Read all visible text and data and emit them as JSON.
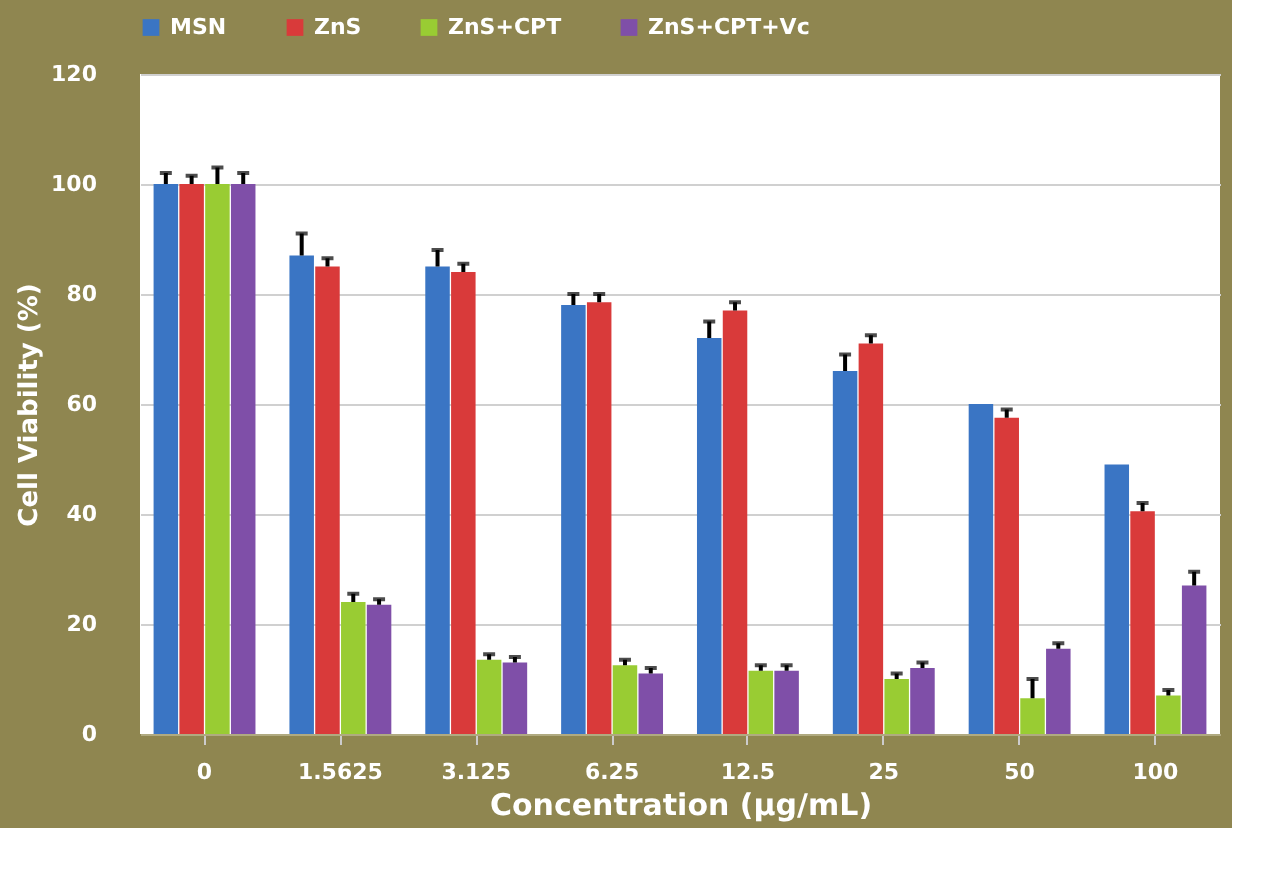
{
  "chart_data": {
    "type": "bar",
    "xlabel": "Concentration (μg/mL)",
    "ylabel": "Cell Viability (%)",
    "categories": [
      "0",
      "1.5625",
      "3.125",
      "6.25",
      "12.5",
      "25",
      "50",
      "100"
    ],
    "series": [
      {
        "name": "MSN",
        "color": "#3a75c4",
        "values": [
          100,
          87,
          85,
          78,
          72,
          66,
          60,
          49
        ],
        "errors": [
          [
            100,
            102
          ],
          [
            87,
            91
          ],
          [
            85,
            88
          ],
          [
            78,
            80
          ],
          [
            72,
            75
          ],
          [
            66,
            69
          ],
          null,
          null
        ]
      },
      {
        "name": "ZnS",
        "color": "#d93a3a",
        "values": [
          100,
          85,
          84,
          78.5,
          77,
          71,
          57.5,
          40.5
        ],
        "errors": [
          [
            100,
            101.5
          ],
          [
            85,
            86.5
          ],
          [
            84,
            85.5
          ],
          [
            78.5,
            80
          ],
          [
            77,
            78.5
          ],
          [
            71,
            72.5
          ],
          [
            57.5,
            59
          ],
          [
            40.5,
            42
          ]
        ]
      },
      {
        "name": "ZnS+CPT",
        "color": "#99cc33",
        "values": [
          100,
          24,
          13.5,
          12.5,
          11.5,
          10,
          6.5,
          7
        ],
        "errors": [
          [
            100,
            103
          ],
          [
            24,
            25.5
          ],
          [
            13.5,
            14.5
          ],
          [
            12.5,
            13.5
          ],
          [
            11.5,
            12.5
          ],
          [
            10,
            11
          ],
          [
            6.5,
            10
          ],
          [
            7,
            8
          ]
        ]
      },
      {
        "name": "ZnS+CPT+Vc",
        "color": "#7f4fa8",
        "values": [
          100,
          23.5,
          13,
          11,
          11.5,
          12,
          15.5,
          27
        ],
        "errors": [
          [
            100,
            102
          ],
          [
            23.5,
            24.5
          ],
          [
            13,
            14
          ],
          [
            11,
            12
          ],
          [
            11.5,
            12.5
          ],
          [
            12,
            13
          ],
          [
            15.5,
            16.5
          ],
          [
            27,
            29.5
          ]
        ]
      }
    ],
    "ylim": [
      0,
      120
    ],
    "yticks": [
      0,
      20,
      40,
      60,
      80,
      100,
      120
    ],
    "grid": "y",
    "legend": "top"
  }
}
